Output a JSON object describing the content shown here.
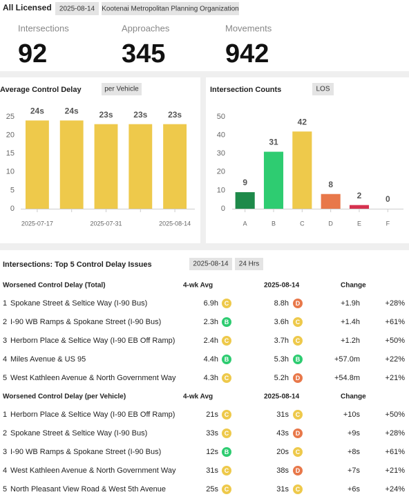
{
  "header": {
    "title": "All Licensed",
    "date": "2025-08-14",
    "organization": "Kootenai Metropolitan Planning Organization"
  },
  "stats": [
    {
      "label": "Intersections",
      "value": 92
    },
    {
      "label": "Approaches",
      "value": 345
    },
    {
      "label": "Movements",
      "value": 942
    }
  ],
  "chart_data": [
    {
      "type": "bar",
      "title": "Average Control Delay",
      "subtitle": "per Vehicle",
      "categories": [
        "2025-07-17",
        null,
        "2025-07-31",
        null,
        "2025-08-14"
      ],
      "values": [
        24,
        24,
        23,
        23,
        23
      ],
      "value_labels": [
        "24s",
        "24s",
        "23s",
        "23s",
        "23s"
      ],
      "color": "#eec94b",
      "ylim": [
        0,
        25
      ],
      "yticks": [
        0,
        5,
        10,
        15,
        20,
        25
      ],
      "grid": false
    },
    {
      "type": "bar",
      "title": "Intersection Counts",
      "subtitle": "LOS",
      "categories": [
        "A",
        "B",
        "C",
        "D",
        "E",
        "F"
      ],
      "values": [
        9,
        31,
        42,
        8,
        2,
        0
      ],
      "colors": [
        "#1e8a4a",
        "#2ecc71",
        "#eec94b",
        "#e8784a",
        "#d6324f",
        "#999999"
      ],
      "ylim": [
        0,
        50
      ],
      "yticks": [
        0,
        10,
        20,
        30,
        40,
        50
      ],
      "grid": false
    }
  ],
  "table": {
    "title": "Intersections: Top 5 Control Delay Issues",
    "date": "2025-08-14",
    "period": "24 Hrs",
    "sections": [
      {
        "columns": [
          "Worsened Control Delay (Total)",
          "4-wk Avg",
          "2025-08-14",
          "Change"
        ],
        "rows": [
          [
            "1",
            "Spokane Street & Seltice Way (I-90 Bus)",
            "6.9h",
            "C",
            "8.8h",
            "D",
            "+1.9h",
            "+28%"
          ],
          [
            "2",
            "I-90 WB Ramps & Spokane Street (I-90 Bus)",
            "2.3h",
            "B",
            "3.6h",
            "C",
            "+1.4h",
            "+61%"
          ],
          [
            "3",
            "Herborn Place & Seltice Way (I-90 EB Off Ramp)",
            "2.4h",
            "C",
            "3.7h",
            "C",
            "+1.2h",
            "+50%"
          ],
          [
            "4",
            "Miles Avenue & US 95",
            "4.4h",
            "B",
            "5.3h",
            "B",
            "+57.0m",
            "+22%"
          ],
          [
            "5",
            "West Kathleen Avenue & North Government Way",
            "4.3h",
            "C",
            "5.2h",
            "D",
            "+54.8m",
            "+21%"
          ]
        ]
      },
      {
        "columns": [
          "Worsened Control Delay (per Vehicle)",
          "4-wk Avg",
          "2025-08-14",
          "Change"
        ],
        "rows": [
          [
            "1",
            "Herborn Place & Seltice Way (I-90 EB Off Ramp)",
            "21s",
            "C",
            "31s",
            "C",
            "+10s",
            "+50%"
          ],
          [
            "2",
            "Spokane Street & Seltice Way (I-90 Bus)",
            "33s",
            "C",
            "43s",
            "D",
            "+9s",
            "+28%"
          ],
          [
            "3",
            "I-90 WB Ramps & Spokane Street (I-90 Bus)",
            "12s",
            "B",
            "20s",
            "C",
            "+8s",
            "+61%"
          ],
          [
            "4",
            "West Kathleen Avenue & North Government Way",
            "31s",
            "C",
            "38s",
            "D",
            "+7s",
            "+21%"
          ],
          [
            "5",
            "North Pleasant View Road & West 5th Avenue",
            "25s",
            "C",
            "31s",
            "C",
            "+6s",
            "+24%"
          ]
        ]
      }
    ]
  }
}
